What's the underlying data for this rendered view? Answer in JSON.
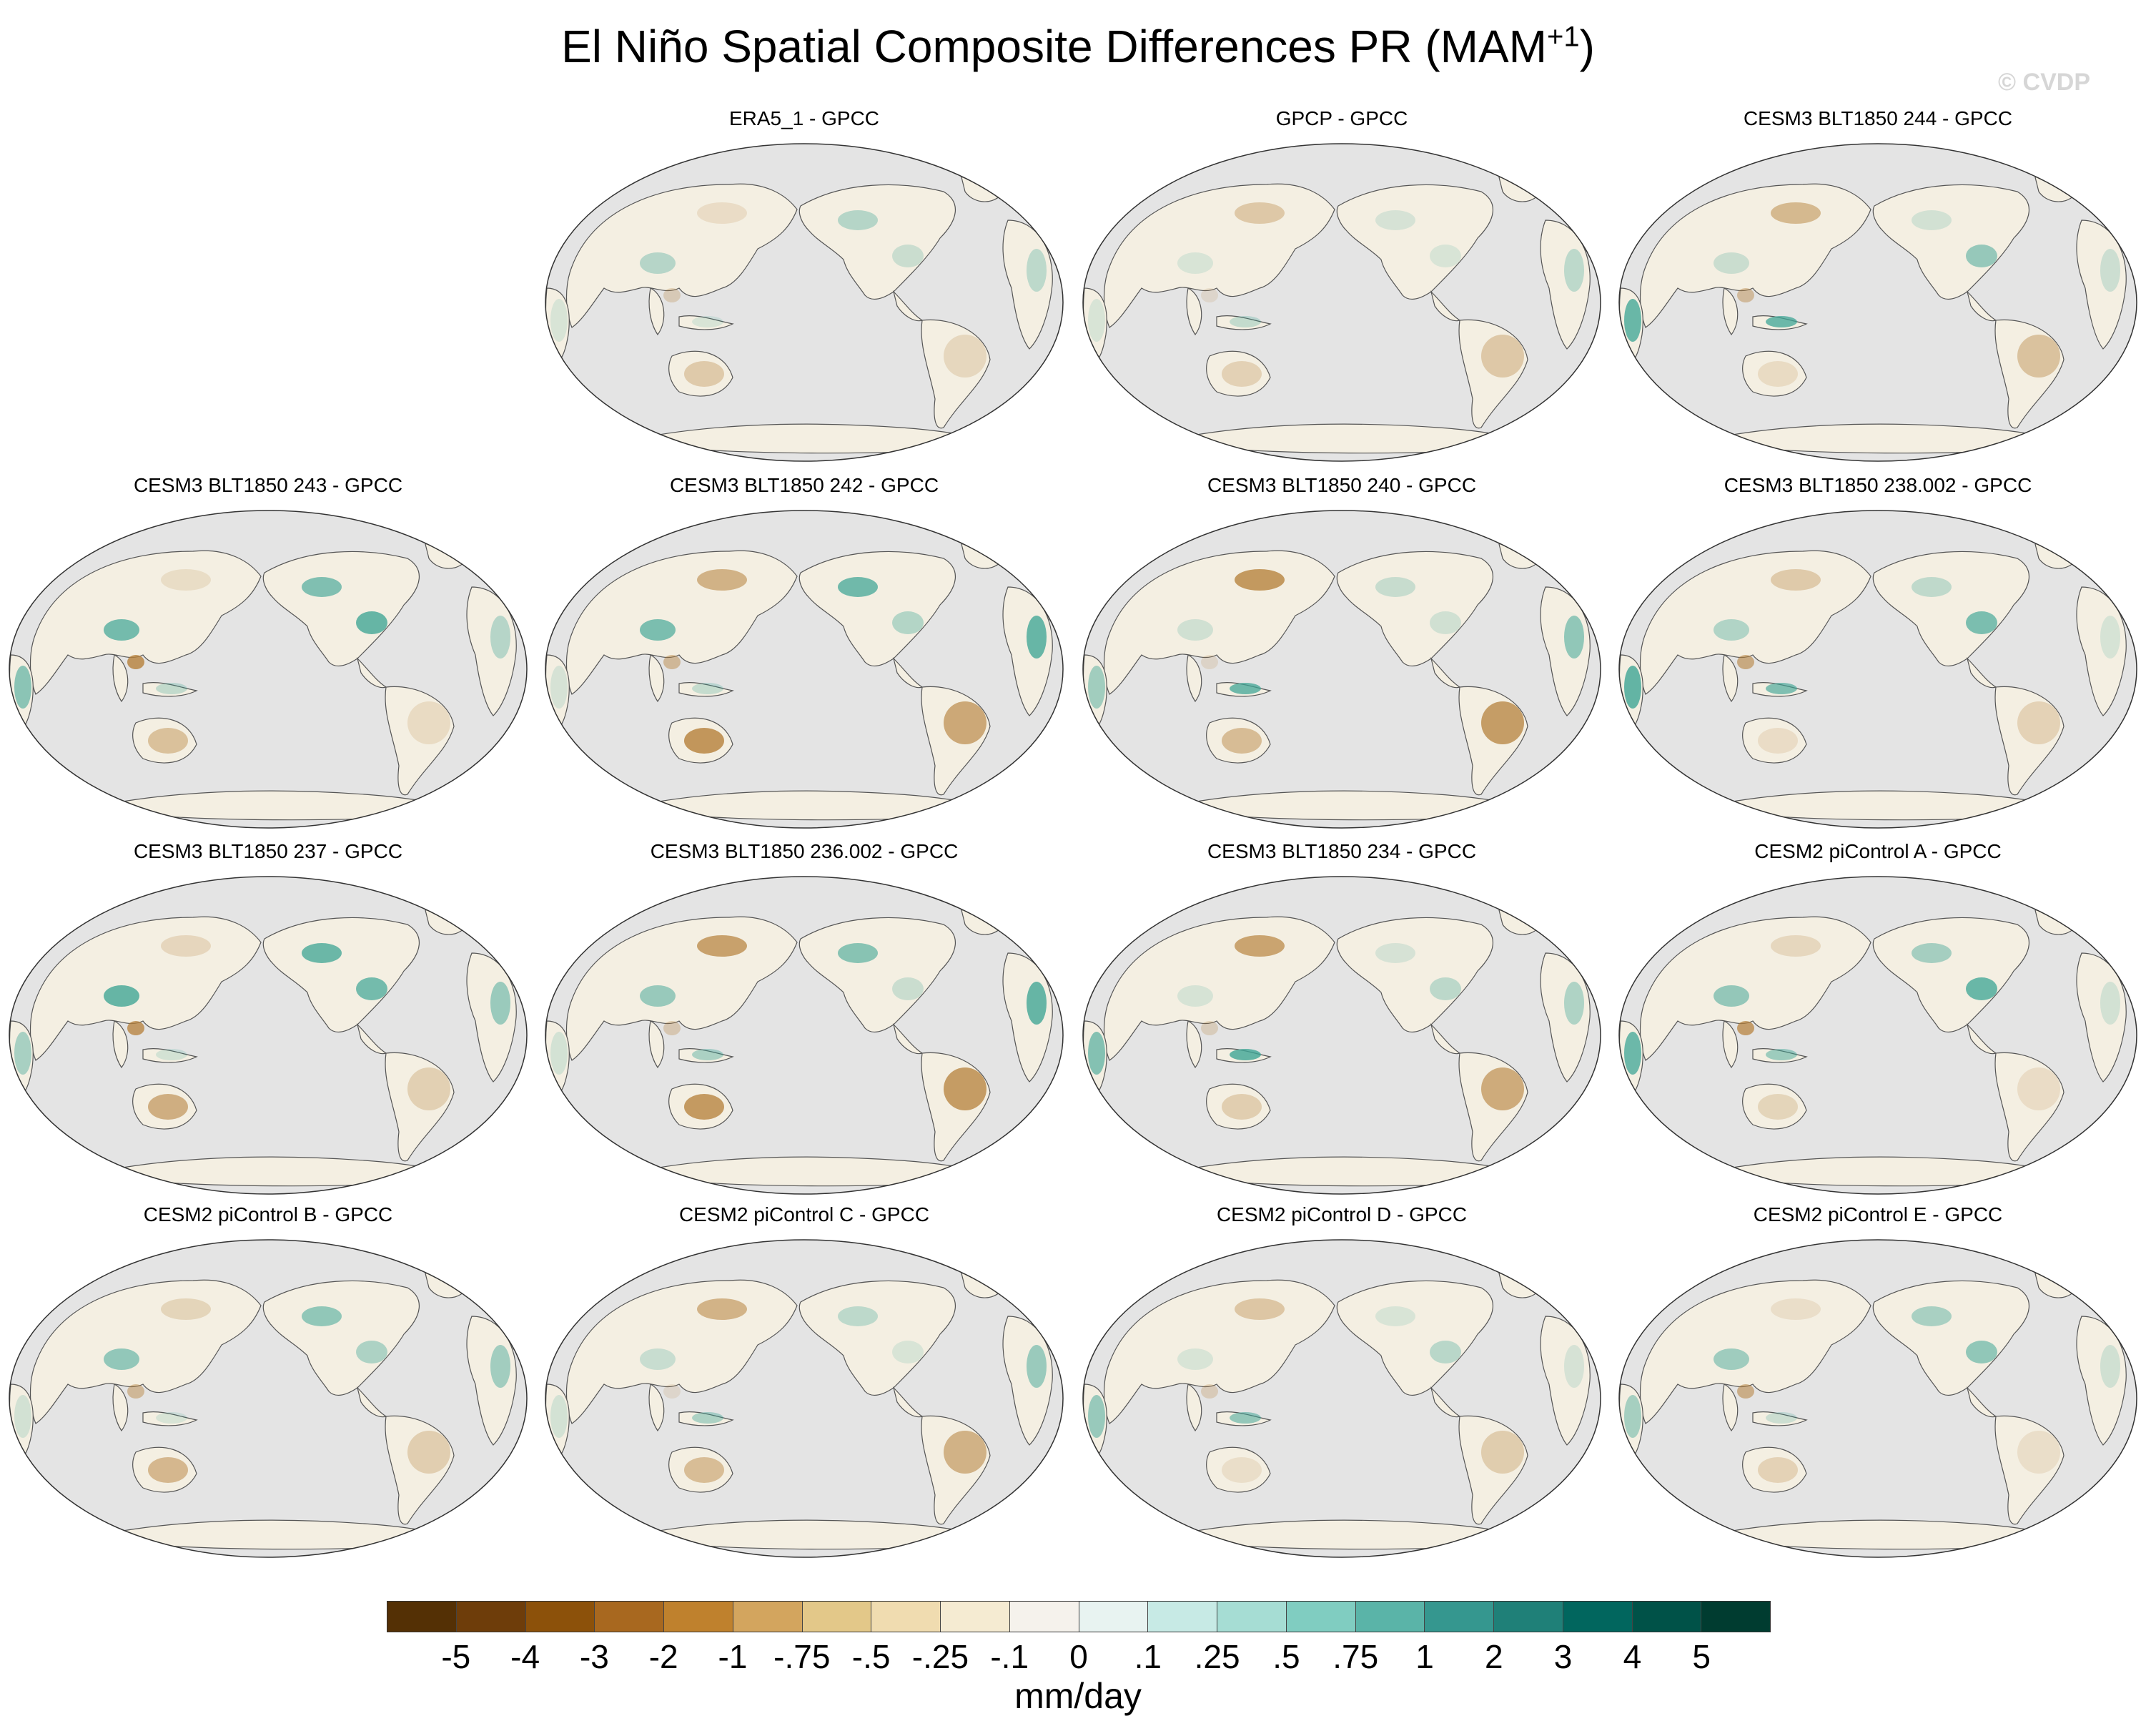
{
  "title": "El Niño Spatial Composite Differences PR (MAM",
  "title_sup": "+1",
  "title_close": ")",
  "watermark": "© CVDP",
  "panels": [
    {
      "row": 0,
      "col": 1,
      "title": "ERA5_1 - GPCC"
    },
    {
      "row": 0,
      "col": 2,
      "title": "GPCP - GPCC"
    },
    {
      "row": 0,
      "col": 3,
      "title": "CESM3 BLT1850 244 - GPCC"
    },
    {
      "row": 1,
      "col": 0,
      "title": "CESM3 BLT1850 243 - GPCC"
    },
    {
      "row": 1,
      "col": 1,
      "title": "CESM3 BLT1850 242 - GPCC"
    },
    {
      "row": 1,
      "col": 2,
      "title": "CESM3 BLT1850 240 - GPCC"
    },
    {
      "row": 1,
      "col": 3,
      "title": "CESM3 BLT1850 238.002 - GPCC"
    },
    {
      "row": 2,
      "col": 0,
      "title": "CESM3 BLT1850 237 - GPCC"
    },
    {
      "row": 2,
      "col": 1,
      "title": "CESM3 BLT1850 236.002 - GPCC"
    },
    {
      "row": 2,
      "col": 2,
      "title": "CESM3 BLT1850 234 - GPCC"
    },
    {
      "row": 2,
      "col": 3,
      "title": "CESM2 piControl A - GPCC"
    },
    {
      "row": 3,
      "col": 0,
      "title": "CESM2 piControl B - GPCC"
    },
    {
      "row": 3,
      "col": 1,
      "title": "CESM2 piControl C - GPCC"
    },
    {
      "row": 3,
      "col": 2,
      "title": "CESM2 piControl D - GPCC"
    },
    {
      "row": 3,
      "col": 3,
      "title": "CESM2 piControl E - GPCC"
    }
  ],
  "colorbar": {
    "colors": [
      "#543005",
      "#6e3d0a",
      "#8c510a",
      "#a8681f",
      "#bf812d",
      "#d3a55e",
      "#e3c889",
      "#f0dcb0",
      "#f5ebd2",
      "#f5f2ec",
      "#e8f3f1",
      "#c7eae5",
      "#a6ddd4",
      "#80cdc1",
      "#5ab4a8",
      "#35978f",
      "#1f8078",
      "#01665e",
      "#005248",
      "#003c30"
    ],
    "labels": [
      "-5",
      "-4",
      "-3",
      "-2",
      "-1",
      "-.75",
      "-.5",
      "-.25",
      "-.1",
      "0",
      ".1",
      ".25",
      ".5",
      ".75",
      "1",
      "2",
      "3",
      "4",
      "5"
    ],
    "units": "mm/day"
  },
  "map_colors": {
    "ocean": "#e4e4e4",
    "land_neutral": "#f4efe2",
    "coast": "#555555",
    "dry": "#b5803a",
    "wet": "#3fa595"
  }
}
